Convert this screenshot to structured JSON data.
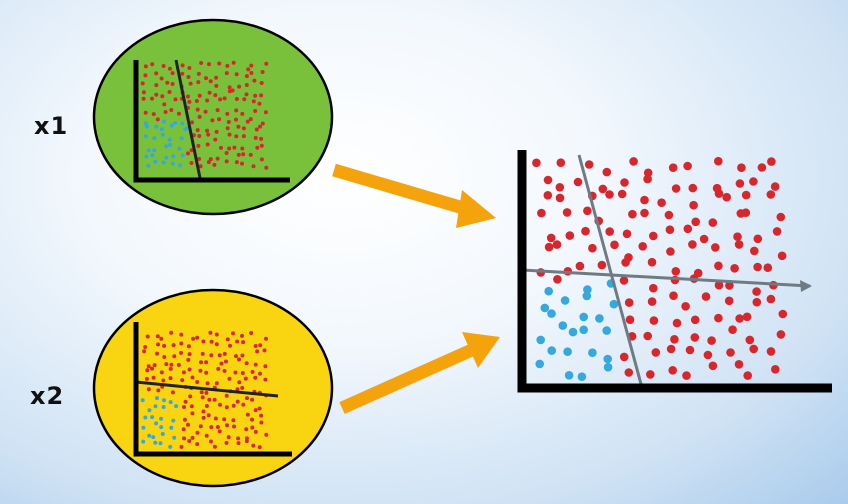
{
  "labels": {
    "top": "x1",
    "bottom": "x2"
  },
  "colors": {
    "top_panel_fill": "#79c13a",
    "bottom_panel_fill": "#f9d511",
    "red_dot": "#d7262c",
    "blue_dot": "#35a8de",
    "axis": "#000000",
    "boundary_dark": "#222222",
    "boundary_grey": "#6e7b85",
    "arrow": "#f5a30c"
  },
  "icons": {
    "arrow_top": "arrow-right-icon",
    "arrow_bottom": "arrow-right-icon"
  }
}
